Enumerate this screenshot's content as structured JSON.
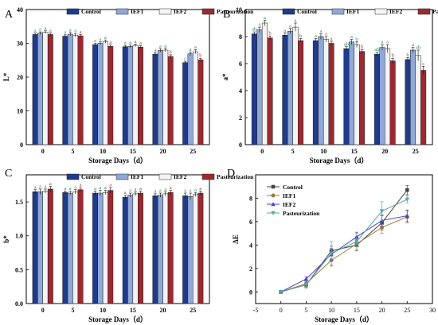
{
  "figure": {
    "legend_labels": [
      "Control",
      "IEF1",
      "IEF2",
      "Pasteurization"
    ]
  },
  "colors": {
    "Control": "#1f3b8c",
    "IEF1": "#8fa8d8",
    "IEF2": "#f4f4f4",
    "Pasteurization": "#9b2a30",
    "IEF2_line": "#4a3fd1",
    "Past_line": "#54a79a",
    "Control_line": "#454545",
    "IEF1_line": "#a07840"
  },
  "chart_data": [
    {
      "panel": "A",
      "type": "bar",
      "categories": [
        "0",
        "5",
        "10",
        "15",
        "20",
        "25"
      ],
      "xlabel": "Storage Days（d）",
      "ylabel": "L*",
      "ylim": [
        0,
        40
      ],
      "yticks": [
        0,
        10,
        20,
        30,
        40
      ],
      "legend": "top-right",
      "series": [
        {
          "name": "Control",
          "values": [
            32.6,
            32.1,
            29.6,
            29.0,
            26.8,
            24.3
          ],
          "errors": [
            0.4,
            0.4,
            0.4,
            0.4,
            0.4,
            0.4
          ],
          "labels": [
            "a",
            "a",
            "a",
            "a",
            "a",
            "c"
          ]
        },
        {
          "name": "IEF1",
          "values": [
            33.0,
            32.7,
            30.0,
            29.1,
            27.9,
            26.9
          ],
          "errors": [
            0.4,
            0.5,
            0.4,
            0.4,
            0.5,
            0.5
          ],
          "labels": [
            "a",
            "a",
            "a",
            "a",
            "a",
            "a"
          ]
        },
        {
          "name": "IEF2",
          "values": [
            33.3,
            32.4,
            30.5,
            29.4,
            28.0,
            27.5
          ],
          "errors": [
            0.4,
            0.5,
            0.5,
            0.4,
            0.5,
            0.6
          ],
          "labels": [
            "a",
            "a",
            "a",
            "a",
            "a",
            "a"
          ]
        },
        {
          "name": "Pasteurization",
          "values": [
            32.6,
            32.2,
            29.1,
            28.9,
            26.1,
            25.1
          ],
          "errors": [
            0.4,
            0.4,
            0.4,
            0.4,
            0.5,
            0.5
          ],
          "labels": [
            "a",
            "a",
            "a",
            "a",
            "b",
            "b"
          ]
        }
      ]
    },
    {
      "panel": "B",
      "type": "bar",
      "categories": [
        "0",
        "5",
        "10",
        "15",
        "20",
        "25"
      ],
      "xlabel": "Storage Days（d）",
      "ylabel": "a*",
      "ylim": [
        0,
        10
      ],
      "yticks": [
        0,
        2,
        4,
        6,
        8,
        10
      ],
      "legend": "top-right",
      "series": [
        {
          "name": "Control",
          "values": [
            8.2,
            8.1,
            7.7,
            7.1,
            6.7,
            6.3
          ],
          "errors": [
            0.15,
            0.15,
            0.15,
            0.15,
            0.15,
            0.15
          ],
          "labels": [
            "ab",
            "a",
            "a",
            "ab",
            "ab",
            "b"
          ]
        },
        {
          "name": "IEF1",
          "values": [
            8.5,
            8.4,
            8.0,
            7.6,
            7.2,
            7.0
          ],
          "errors": [
            0.2,
            0.2,
            0.2,
            0.2,
            0.2,
            0.2
          ],
          "labels": [
            "a",
            "a",
            "a",
            "a",
            "a",
            "a"
          ]
        },
        {
          "name": "IEF2",
          "values": [
            9.0,
            8.7,
            7.8,
            7.4,
            7.1,
            6.6
          ],
          "errors": [
            0.2,
            0.3,
            0.2,
            0.2,
            0.3,
            0.4
          ],
          "labels": [
            "a",
            "a",
            "a",
            "b",
            "a",
            "ab"
          ]
        },
        {
          "name": "Pasteurization",
          "values": [
            7.9,
            7.7,
            7.5,
            6.9,
            6.2,
            5.5
          ],
          "errors": [
            0.15,
            0.15,
            0.15,
            0.15,
            0.2,
            0.3
          ],
          "labels": [
            "b",
            "b",
            "a",
            "b",
            "b",
            "c"
          ]
        }
      ]
    },
    {
      "panel": "C",
      "type": "bar",
      "categories": [
        "0",
        "5",
        "10",
        "15",
        "20",
        "25"
      ],
      "xlabel": "Storage Days（d）",
      "ylabel": "b*",
      "ylim": [
        0,
        1.9
      ],
      "yticks": [
        0,
        0.5,
        1.0,
        1.5
      ],
      "legend": "top-right",
      "series": [
        {
          "name": "Control",
          "values": [
            1.65,
            1.64,
            1.63,
            1.57,
            1.59,
            1.59
          ],
          "errors": [
            0.03,
            0.02,
            0.03,
            0.03,
            0.03,
            0.04
          ],
          "labels": [
            "a",
            "a",
            "a",
            "a",
            "a",
            "a"
          ]
        },
        {
          "name": "IEF1",
          "values": [
            1.65,
            1.63,
            1.63,
            1.6,
            1.6,
            1.58
          ],
          "errors": [
            0.04,
            0.03,
            0.04,
            0.03,
            0.03,
            0.05
          ],
          "labels": [
            "a",
            "a",
            "a",
            "a",
            "a",
            "a"
          ]
        },
        {
          "name": "IEF2",
          "values": [
            1.66,
            1.65,
            1.64,
            1.62,
            1.62,
            1.61
          ],
          "errors": [
            0.03,
            0.03,
            0.03,
            0.03,
            0.03,
            0.03
          ],
          "labels": [
            "a",
            "a",
            "a",
            "a",
            "a",
            "a"
          ]
        },
        {
          "name": "Pasteurization",
          "values": [
            1.69,
            1.68,
            1.67,
            1.63,
            1.64,
            1.63
          ],
          "errors": [
            0.04,
            0.03,
            0.04,
            0.03,
            0.03,
            0.03
          ],
          "labels": [
            "a",
            "a",
            "a",
            "a",
            "a",
            "a"
          ]
        }
      ]
    },
    {
      "panel": "D",
      "type": "line",
      "x": [
        0,
        5,
        10,
        15,
        20,
        25
      ],
      "xlabel": "Storage Days（d）",
      "ylabel": "ΔE",
      "xlim": [
        -5,
        30
      ],
      "ylim": [
        -1,
        10
      ],
      "xticks": [
        -5,
        0,
        5,
        10,
        15,
        20,
        25,
        30
      ],
      "yticks": [
        0,
        2,
        4,
        6,
        8
      ],
      "legend": "top-left",
      "series": [
        {
          "name": "Control",
          "marker": "square",
          "values": [
            0,
            0.6,
            3.5,
            4.0,
            5.9,
            8.7
          ],
          "errors": [
            0.05,
            0.2,
            0.4,
            0.5,
            0.6,
            0.4
          ]
        },
        {
          "name": "IEF1",
          "marker": "circle",
          "values": [
            0,
            0.7,
            2.7,
            4.1,
            5.5,
            6.4
          ],
          "errors": [
            0.05,
            0.3,
            0.5,
            0.6,
            0.5,
            0.5
          ]
        },
        {
          "name": "IEF2",
          "marker": "triangle",
          "values": [
            0,
            1.1,
            3.2,
            4.7,
            6.1,
            6.5
          ],
          "errors": [
            0.05,
            0.2,
            0.5,
            0.4,
            0.5,
            0.5
          ]
        },
        {
          "name": "Pasteurization",
          "marker": "triangle-down",
          "values": [
            0,
            0.6,
            3.3,
            4.3,
            6.9,
            7.9
          ],
          "errors": [
            0.05,
            0.3,
            1.0,
            0.7,
            0.8,
            0.3
          ]
        }
      ]
    }
  ]
}
